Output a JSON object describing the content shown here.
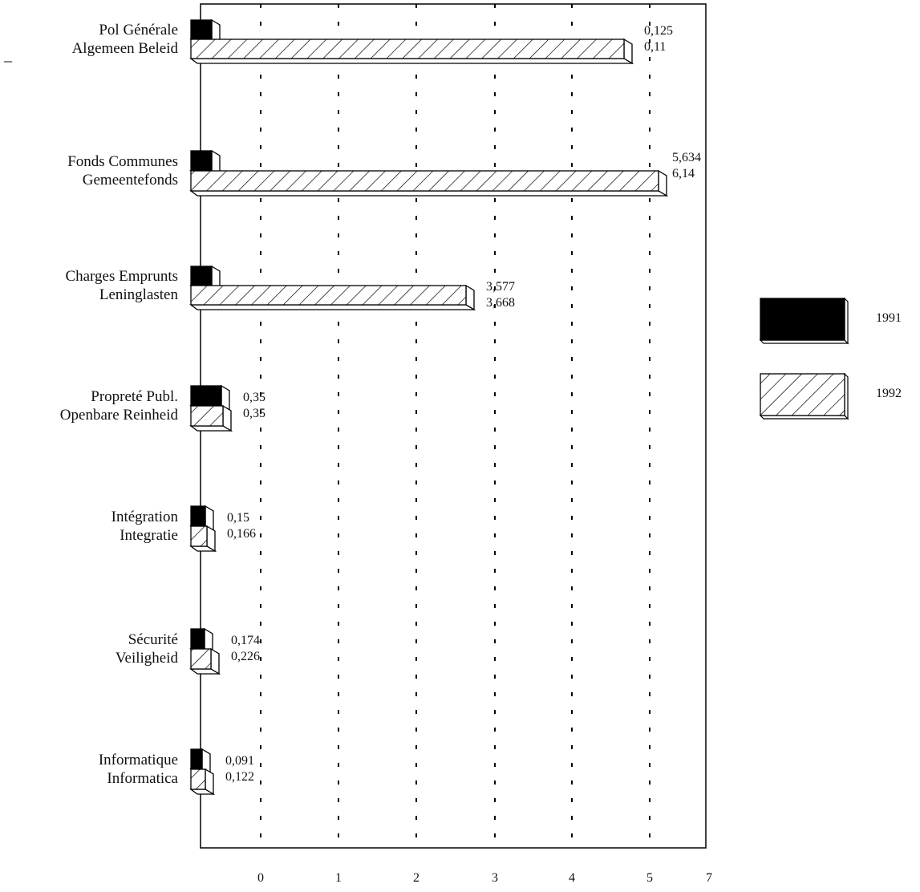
{
  "chart_data": {
    "type": "bar",
    "orientation": "horizontal",
    "categories": [
      [
        "Pol Générale",
        "Algemeen Beleid"
      ],
      [
        "Fonds Communes",
        "Gemeentefonds"
      ],
      [
        "Charges Emprunts",
        "Leninglasten"
      ],
      [
        "Propreté Publ.",
        "Openbare Reinheid"
      ],
      [
        "Intégration",
        "Integratie"
      ],
      [
        "Sécurité",
        "Veiligheid"
      ],
      [
        "Informatique",
        "Informatica"
      ]
    ],
    "series": [
      {
        "name": "1991",
        "values": [
          0.125,
          5.634,
          3.577,
          0.35,
          0.15,
          0.174,
          0.091
        ],
        "labels": [
          "0,125",
          "5,634",
          "3,577",
          "0,35",
          "0,15",
          "0,174",
          "0,091"
        ]
      },
      {
        "name": "1992",
        "values": [
          0.11,
          6.14,
          3.668,
          0.35,
          0.166,
          0.226,
          0.122
        ],
        "labels": [
          "0,11",
          "6,14",
          "3,668",
          "0,35",
          "0,166",
          "0,226",
          "0,122"
        ]
      }
    ],
    "x_ticks": [
      "0",
      "1",
      "2",
      "3",
      "4",
      "5",
      "7"
    ],
    "grid": "vertical dashed",
    "legend_placement": "right",
    "colors": {
      "1991": "#000000",
      "1992": "hatched",
      "background": "#ffffff"
    }
  },
  "page": {
    "dash_mark": "_"
  }
}
